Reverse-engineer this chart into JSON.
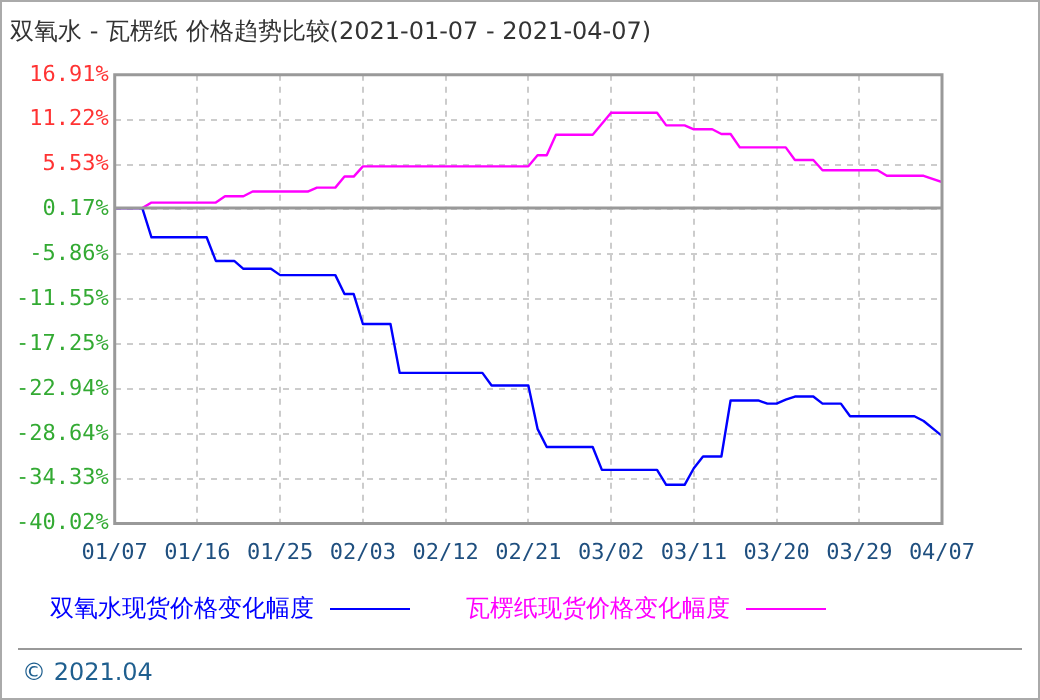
{
  "chart_data": {
    "type": "line",
    "title": "双氧水 - 瓦楞纸 价格趋势比较(2021-01-07 - 2021-04-07)",
    "series": [
      {
        "name": "双氧水现货价格变化幅度",
        "color": "#0000ff",
        "x": [
          "2021-01-07",
          "2021-01-10",
          "2021-01-11",
          "2021-01-17",
          "2021-01-18",
          "2021-01-20",
          "2021-01-21",
          "2021-01-24",
          "2021-01-25",
          "2021-01-31",
          "2021-02-01",
          "2021-02-02",
          "2021-02-03",
          "2021-02-06",
          "2021-02-07",
          "2021-02-16",
          "2021-02-17",
          "2021-02-21",
          "2021-02-22",
          "2021-02-23",
          "2021-02-28",
          "2021-03-01",
          "2021-03-07",
          "2021-03-08",
          "2021-03-10",
          "2021-03-11",
          "2021-03-12",
          "2021-03-14",
          "2021-03-15",
          "2021-03-18",
          "2021-03-19",
          "2021-03-20",
          "2021-03-21",
          "2021-03-22",
          "2021-03-24",
          "2021-03-25",
          "2021-03-27",
          "2021-03-28",
          "2021-04-04",
          "2021-04-05",
          "2021-04-07"
        ],
        "values": [
          0,
          0,
          -3.7,
          -3.7,
          -6.7,
          -6.7,
          -7.7,
          -7.7,
          -8.5,
          -8.5,
          -10.9,
          -10.9,
          -14.7,
          -14.7,
          -20.9,
          -20.9,
          -22.5,
          -22.5,
          -28.0,
          -30.3,
          -30.3,
          -33.2,
          -33.2,
          -35.1,
          -35.1,
          -33.0,
          -31.5,
          -31.5,
          -24.4,
          -24.4,
          -24.8,
          -24.8,
          -24.3,
          -23.9,
          -23.9,
          -24.8,
          -24.8,
          -26.4,
          -26.4,
          -27.0,
          -28.9
        ]
      },
      {
        "name": "瓦楞纸现货价格变化幅度",
        "color": "#ff00ff",
        "x": [
          "2021-01-07",
          "2021-01-10",
          "2021-01-11",
          "2021-01-18",
          "2021-01-19",
          "2021-01-21",
          "2021-01-22",
          "2021-01-28",
          "2021-01-29",
          "2021-01-31",
          "2021-02-01",
          "2021-02-02",
          "2021-02-03",
          "2021-02-21",
          "2021-02-22",
          "2021-02-23",
          "2021-02-24",
          "2021-02-28",
          "2021-03-02",
          "2021-03-07",
          "2021-03-08",
          "2021-03-10",
          "2021-03-11",
          "2021-03-13",
          "2021-03-14",
          "2021-03-15",
          "2021-03-16",
          "2021-03-21",
          "2021-03-22",
          "2021-03-24",
          "2021-03-25",
          "2021-03-31",
          "2021-04-01",
          "2021-04-05",
          "2021-04-07"
        ],
        "values": [
          0,
          0,
          0.7,
          0.7,
          1.5,
          1.5,
          2.1,
          2.1,
          2.6,
          2.6,
          4.0,
          4.0,
          5.3,
          5.3,
          6.7,
          6.7,
          9.3,
          9.3,
          12.1,
          12.1,
          10.5,
          10.5,
          10.0,
          10.0,
          9.4,
          9.4,
          7.7,
          7.7,
          6.1,
          6.1,
          4.8,
          4.8,
          4.1,
          4.1,
          3.3
        ]
      }
    ],
    "xlim": [
      "2021-01-07",
      "2021-04-07"
    ],
    "xticks": [
      {
        "value": "2021-01-07",
        "label": "01/07"
      },
      {
        "value": "2021-01-16",
        "label": "01/16"
      },
      {
        "value": "2021-01-25",
        "label": "01/25"
      },
      {
        "value": "2021-02-03",
        "label": "02/03"
      },
      {
        "value": "2021-02-12",
        "label": "02/12"
      },
      {
        "value": "2021-02-21",
        "label": "02/21"
      },
      {
        "value": "2021-03-02",
        "label": "03/02"
      },
      {
        "value": "2021-03-11",
        "label": "03/11"
      },
      {
        "value": "2021-03-20",
        "label": "03/20"
      },
      {
        "value": "2021-03-29",
        "label": "03/29"
      },
      {
        "value": "2021-04-07",
        "label": "04/07"
      }
    ],
    "ylim": [
      -40.02,
      16.91
    ],
    "yticks": [
      {
        "value": 16.91,
        "label": "16.91%"
      },
      {
        "value": 11.22,
        "label": "11.22%"
      },
      {
        "value": 5.53,
        "label": "5.53%"
      },
      {
        "value": -0.17,
        "label": "0.17%"
      },
      {
        "value": -5.86,
        "label": "-5.86%"
      },
      {
        "value": -11.55,
        "label": "-11.55%"
      },
      {
        "value": -17.25,
        "label": "-17.25%"
      },
      {
        "value": -22.94,
        "label": "-22.94%"
      },
      {
        "value": -28.64,
        "label": "-28.64%"
      },
      {
        "value": -34.33,
        "label": "-34.33%"
      },
      {
        "value": -40.02,
        "label": "-40.02%"
      }
    ],
    "ref_lines": [
      {
        "axis": "y",
        "value": 0,
        "color": "#999999"
      }
    ],
    "grid": true,
    "legend": "bottom",
    "marker": "none",
    "line_style": "solid",
    "annotations": [
      "© 2021.04"
    ]
  }
}
